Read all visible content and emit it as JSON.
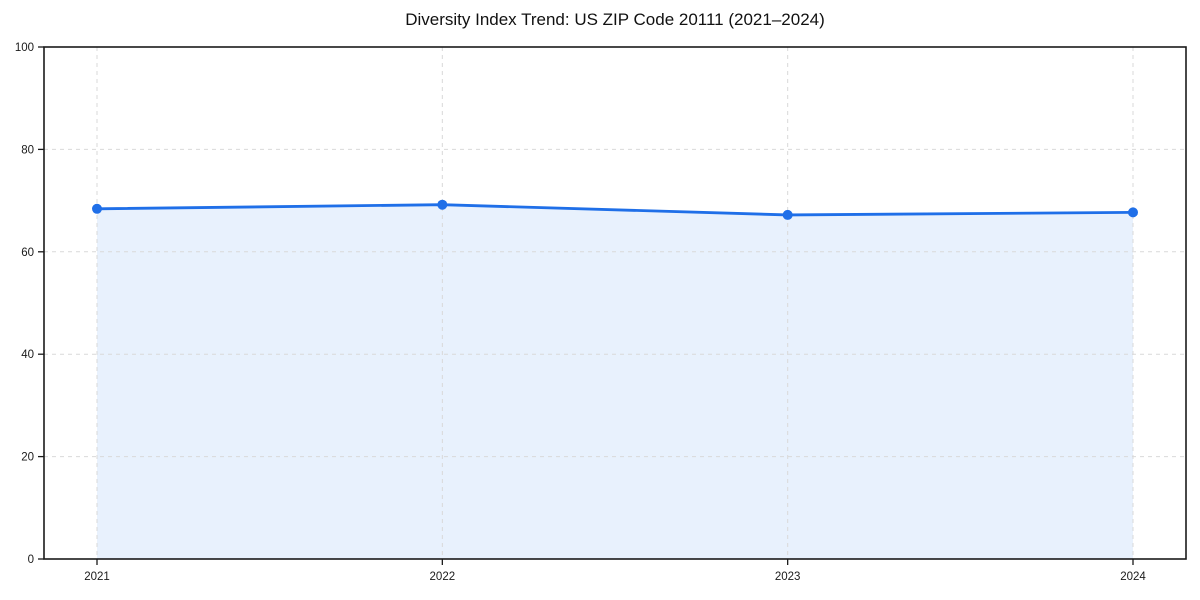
{
  "chart_data": {
    "type": "line",
    "title": "Diversity Index Trend: US ZIP Code 20111 (2021–2024)",
    "categories": [
      "2021",
      "2022",
      "2023",
      "2024"
    ],
    "values": [
      68.4,
      69.2,
      67.2,
      67.7
    ],
    "xlabel": "",
    "ylabel": "",
    "ylim": [
      0,
      100
    ],
    "yticks": [
      0,
      20,
      40,
      60,
      80,
      100
    ],
    "grid": true,
    "grid_style": "dashed",
    "legend": "none",
    "area_fill": true,
    "markers": true,
    "colors": {
      "line": "#1f6fe8",
      "marker": "#1f6fe8",
      "area": "#e8f1fd",
      "grid": "#d9d9d9",
      "spine": "#1a1a1a",
      "tick_label": "#1a1a1a",
      "title": "#111111",
      "background": "#ffffff"
    }
  }
}
